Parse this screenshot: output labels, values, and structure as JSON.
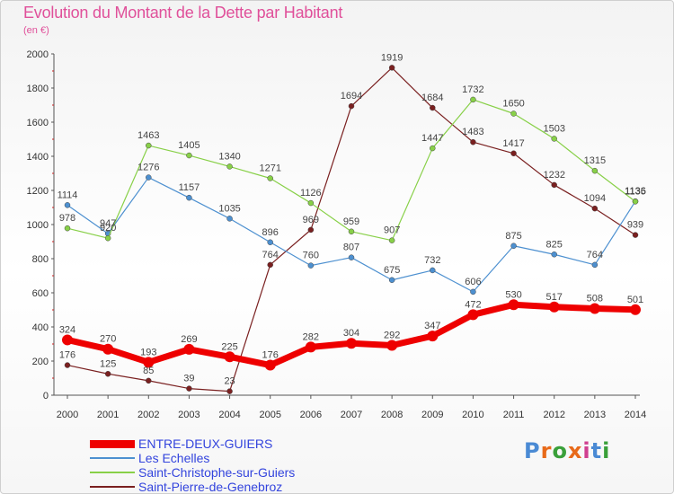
{
  "title": "Evolution du Montant de la Dette par Habitant",
  "unit_label": "(en €)",
  "logo": {
    "text": "Proxiti",
    "letter_colors": [
      "#4a8ad4",
      "#e86a1a",
      "#3aa03a",
      "#e86a1a",
      "#d04090",
      "#4a8ad4",
      "#3aa03a"
    ]
  },
  "chart_data": {
    "type": "line",
    "title": "Evolution du Montant de la Dette par Habitant",
    "ylabel": "(en €)",
    "x": [
      "2000",
      "2001",
      "2002",
      "2003",
      "2004",
      "2005",
      "2006",
      "2007",
      "2008",
      "2009",
      "2010",
      "2011",
      "2012",
      "2013",
      "2014"
    ],
    "ylim": [
      0,
      2000
    ],
    "yticks": [
      "0",
      "200",
      "400",
      "600",
      "800",
      "1000",
      "1200",
      "1400",
      "1600",
      "1800",
      "2000"
    ],
    "grid": false,
    "legend_position": "bottom-left",
    "series": [
      {
        "name": "ENTRE-DEUX-GUIERS",
        "color": "#ee0000",
        "values": [
          324,
          270,
          193,
          269,
          225,
          176,
          282,
          304,
          292,
          347,
          472,
          530,
          517,
          508,
          501
        ],
        "labels": [
          "324",
          "270",
          "193",
          "269",
          "225",
          "176",
          "282",
          "304",
          "292",
          "347",
          "472",
          "530",
          "517",
          "508",
          "501"
        ]
      },
      {
        "name": "Les Echelles",
        "color": "#4d90d0",
        "values": [
          1114,
          947,
          1276,
          1157,
          1035,
          896,
          760,
          807,
          675,
          732,
          606,
          875,
          825,
          764,
          1136
        ],
        "labels": [
          "1114",
          "947",
          "1276",
          "1157",
          "1035",
          "896",
          "760",
          "807",
          "675",
          "732",
          "606",
          "875",
          "825",
          "764",
          "1136"
        ]
      },
      {
        "name": "Saint-Christophe-sur-Guiers",
        "color": "#88d048",
        "values": [
          978,
          920,
          1463,
          1405,
          1340,
          1271,
          1126,
          959,
          907,
          1447,
          1732,
          1650,
          1503,
          1315,
          1135
        ],
        "labels": [
          "978",
          "920",
          "1463",
          "1405",
          "1340",
          "1271",
          "1126",
          "959",
          "907",
          "1447",
          "1732",
          "1650",
          "1503",
          "1315",
          "1135"
        ]
      },
      {
        "name": "Saint-Pierre-de-Genebroz",
        "color": "#7a2020",
        "values": [
          176,
          125,
          85,
          39,
          23,
          764,
          969,
          1694,
          1919,
          1684,
          1483,
          1417,
          1232,
          1094,
          939
        ],
        "labels": [
          "176",
          "125",
          "85",
          "39",
          "23",
          "764",
          "969",
          "1694",
          "1919",
          "1684",
          "1483",
          "1417",
          "1232",
          "1094",
          "939"
        ]
      }
    ]
  }
}
